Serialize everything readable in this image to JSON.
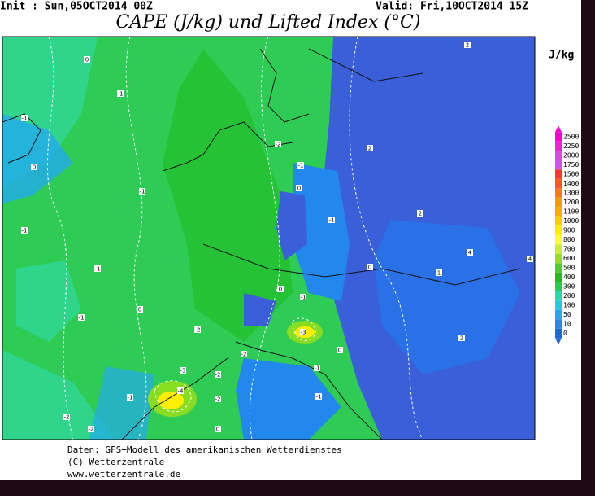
{
  "header": {
    "init": "Init : Sun,05OCT2014 00Z",
    "valid": "Valid: Fri,10OCT2014 15Z",
    "title": "CAPE (J/kg) und Lifted Index (°C)"
  },
  "legend": {
    "unit": "J/kg",
    "labels": [
      "2500",
      "2250",
      "2000",
      "1750",
      "1500",
      "1400",
      "1300",
      "1200",
      "1100",
      "1000",
      "900",
      "800",
      "700",
      "600",
      "500",
      "400",
      "300",
      "200",
      "100",
      "50",
      "10",
      "0"
    ],
    "colors": [
      "#ff00cc",
      "#ee22dd",
      "#dd44ee",
      "#cc55ee",
      "#ff3333",
      "#ff5522",
      "#ff7711",
      "#ff9900",
      "#ffaa00",
      "#ffcc00",
      "#ffee00",
      "#ffff33",
      "#ccee33",
      "#99dd22",
      "#55cc22",
      "#22bb22",
      "#22cc55",
      "#22ddaa",
      "#22ccdd",
      "#22aaee",
      "#2288ee",
      "#2266dd"
    ]
  },
  "map": {
    "contour_labels": [
      "0",
      "-1",
      "-1",
      "0",
      "-1",
      "-1",
      "-1",
      "0",
      "-1",
      "-2",
      "-3",
      "-4",
      "-2",
      "-2",
      "-1",
      "-2",
      "-2",
      "-2",
      "-3",
      "-1",
      "0",
      "0",
      "-2",
      "-1",
      "-1",
      "2",
      "2",
      "4",
      "1",
      "0",
      "-1",
      "-1",
      "0",
      "2",
      "2",
      "0",
      "4"
    ]
  },
  "footer": {
    "lines": [
      "Daten: GFS−Modell des amerikanischen Wetterdienstes",
      "(C) Wetterzentrale",
      "www.wetterzentrale.de"
    ]
  }
}
